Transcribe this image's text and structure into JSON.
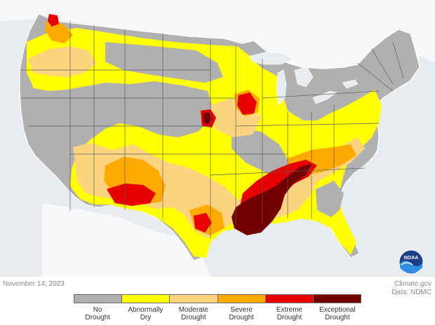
{
  "map": {
    "date": "November 14, 2023",
    "credit_line1": "Climate.gov",
    "credit_line2": "Data: NDMC",
    "logo_text": "NOAA",
    "background_color": "#e9ecef",
    "land_color": "#b0b0b0",
    "state_border_color": "#5c5c5c"
  },
  "legend": {
    "items": [
      {
        "label_line1": "No",
        "label_line2": "Drought",
        "color": "#afafaf"
      },
      {
        "label_line1": "Abnormally",
        "label_line2": "Dry",
        "color": "#ffff00"
      },
      {
        "label_line1": "Moderate",
        "label_line2": "Drought",
        "color": "#fcd37f"
      },
      {
        "label_line1": "Severe",
        "label_line2": "Drought",
        "color": "#ffaa00"
      },
      {
        "label_line1": "Extreme",
        "label_line2": "Drought",
        "color": "#e60000"
      },
      {
        "label_line1": "Exceptional",
        "label_line2": "Drought",
        "color": "#730000"
      }
    ]
  }
}
